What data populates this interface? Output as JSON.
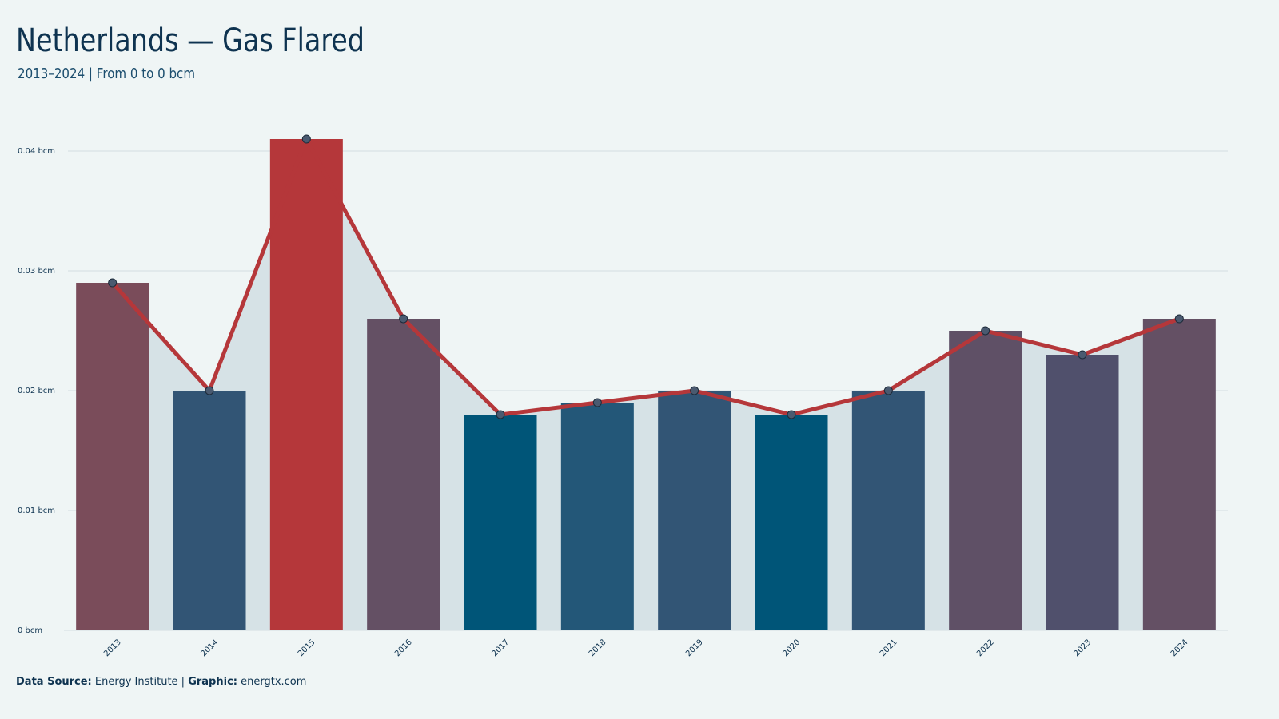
{
  "chart_data": {
    "type": "bar",
    "title": "Netherlands — Gas Flared",
    "subtitle": "2013–2024 | From 0 to 0 bcm",
    "categories": [
      "2013",
      "2014",
      "2015",
      "2016",
      "2017",
      "2018",
      "2019",
      "2020",
      "2021",
      "2022",
      "2023",
      "2024"
    ],
    "values": [
      0.029,
      0.02,
      0.041,
      0.026,
      0.018,
      0.019,
      0.02,
      0.018,
      0.02,
      0.025,
      0.023,
      0.026
    ],
    "colors": [
      "#7a4c5a",
      "#325575",
      "#b5373a",
      "#645064",
      "#005578",
      "#235778",
      "#325575",
      "#005578",
      "#325575",
      "#5f5066",
      "#50506c",
      "#645064"
    ],
    "line_color": "#b5373a",
    "area_color": "#d6e2e6",
    "ylim": [
      0,
      0.045
    ],
    "yticks": [
      {
        "value": 0,
        "label": "0 bcm"
      },
      {
        "value": 0.01,
        "label": "0.01 bcm"
      },
      {
        "value": 0.02,
        "label": "0.02 bcm"
      },
      {
        "value": 0.03,
        "label": "0.03 bcm"
      },
      {
        "value": 0.04,
        "label": "0.04 bcm"
      }
    ],
    "grid": true,
    "footer": {
      "source_label": "Data Source:",
      "source": "Energy Institute |",
      "graphic_label": "Graphic:",
      "graphic": "energtx.com"
    }
  }
}
